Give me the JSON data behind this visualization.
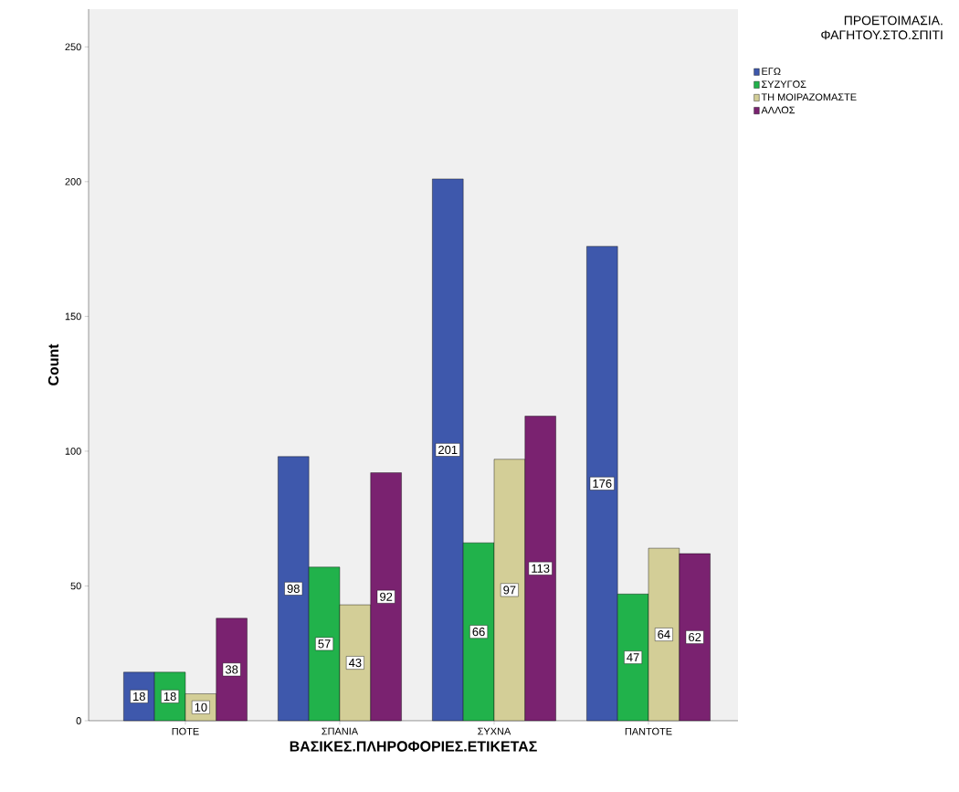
{
  "chart_data": {
    "type": "bar",
    "xlabel": "ΒΑΣΙΚΕΣ.ΠΛΗΡΟΦΟΡΙΕΣ.ΕΤΙΚΕΤΑΣ",
    "ylabel": "Count",
    "legend_title": "ΠΡΟΕΤΟΙΜΑΣΙΑ. ΦΑΓΗΤΟΥ.ΣΤΟ.ΣΠΙΤΙ",
    "categories": [
      "ΠΟΤΕ",
      "ΣΠΑΝΙΑ",
      "ΣΥΧΝΑ",
      "ΠΑΝΤΟΤΕ"
    ],
    "series": [
      {
        "name": "ΕΓΩ",
        "color": "#3e58ac",
        "values": [
          18,
          98,
          201,
          176
        ]
      },
      {
        "name": "ΣΥΖΥΓΟΣ",
        "color": "#21b24b",
        "values": [
          18,
          57,
          66,
          47
        ]
      },
      {
        "name": "ΤΗ ΜΟΙΡΑΖΟΜΑΣΤΕ",
        "color": "#d3ce97",
        "values": [
          10,
          43,
          97,
          64
        ]
      },
      {
        "name": "ΑΛΛΟΣ",
        "color": "#7a2270",
        "values": [
          38,
          92,
          113,
          62
        ]
      }
    ],
    "ylim": [
      0,
      264
    ],
    "yticks": [
      0,
      50,
      100,
      150,
      200,
      250
    ],
    "data_labels": true,
    "legend": "top right",
    "grid": false
  }
}
